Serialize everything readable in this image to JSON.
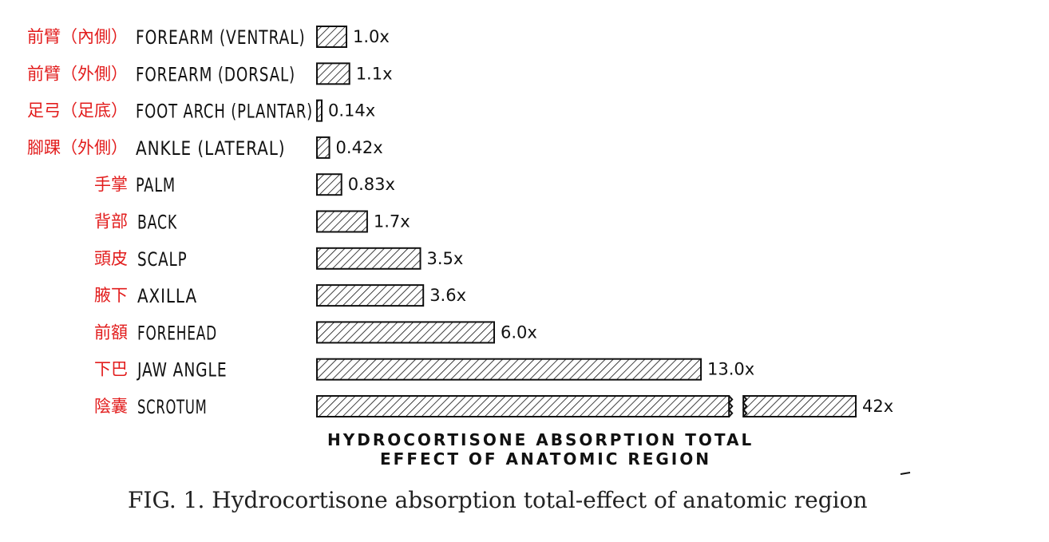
{
  "chart_data": {
    "type": "bar",
    "orientation": "horizontal",
    "categories_zh": [
      "前臂（內側）",
      "前臂（外側）",
      "足弓（足底）",
      "腳踝（外側）",
      "手掌",
      "背部",
      "頭皮",
      "腋下",
      "前額",
      "下巴",
      "陰囊"
    ],
    "categories": [
      "FOREARM (VENTRAL)",
      "FOREARM (DORSAL)",
      "FOOT ARCH (PLANTAR)",
      "ANKLE (LATERAL)",
      "PALM",
      "BACK",
      "SCALP",
      "AXILLA",
      "FOREHEAD",
      "JAW ANGLE",
      "SCROTUM"
    ],
    "values": [
      1.0,
      1.1,
      0.14,
      0.42,
      0.83,
      1.7,
      3.5,
      3.6,
      6.0,
      13.0,
      42
    ],
    "value_labels": [
      "1.0x",
      "1.1x",
      "0.14x",
      "0.42x",
      "0.83x",
      "1.7x",
      "3.5x",
      "3.6x",
      "6.0x",
      "13.0x",
      "42x"
    ],
    "broken_bar_index": 10,
    "xlabel_line1": "HYDROCORTISONE ABSORPTION TOTAL",
    "xlabel_line2": "EFFECT OF ANATOMIC REGION",
    "title": "FIG. 1. Hydrocortisone absorption total-effect of anatomic region",
    "bar_pattern": "diagonal-hatch",
    "bar_color": "#111111",
    "zh_label_color": "#e21c1c"
  }
}
